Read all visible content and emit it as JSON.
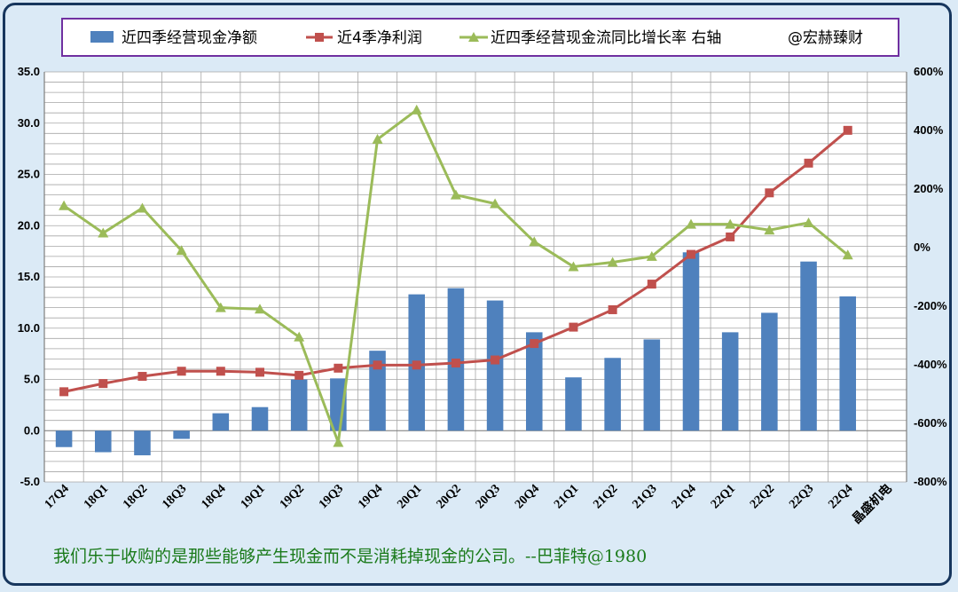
{
  "colors": {
    "bar": "#4f81bd",
    "profit_line": "#c0504d",
    "growth_line": "#9bbb59",
    "plot_bg": "#ffffff",
    "grid": "#a6a6a6",
    "legend_border": "#7030a0",
    "quote": "#1a7a1a"
  },
  "legend": {
    "bar_label": "近四季经营现金净额",
    "profit_label": "近4季净利润",
    "growth_label": "近四季经营现金流同比增长率 右轴",
    "credit": "@宏赫臻财"
  },
  "quote": "我们乐于收购的是那些能够产生现金而不是消耗掉现金的公司。--巴菲特@1980",
  "company_label": "晶盛机电",
  "chart_data": {
    "type": "bar",
    "categories": [
      "17Q4",
      "18Q1",
      "18Q2",
      "18Q3",
      "18Q4",
      "19Q1",
      "19Q2",
      "19Q3",
      "19Q4",
      "20Q1",
      "20Q2",
      "20Q3",
      "20Q4",
      "21Q1",
      "21Q2",
      "21Q3",
      "21Q4",
      "22Q1",
      "22Q2",
      "22Q3",
      "22Q4"
    ],
    "series": [
      {
        "name": "近四季经营现金净额",
        "type": "bar",
        "axis": "left",
        "values": [
          -1.6,
          -2.1,
          -2.4,
          -0.8,
          1.7,
          2.3,
          5.0,
          5.1,
          7.8,
          13.3,
          13.9,
          12.7,
          9.6,
          5.2,
          7.1,
          8.9,
          17.4,
          9.6,
          11.5,
          16.5,
          13.1
        ]
      },
      {
        "name": "近4季净利润",
        "type": "line",
        "axis": "left",
        "values": [
          3.8,
          4.6,
          5.3,
          5.8,
          5.8,
          5.7,
          5.4,
          6.1,
          6.4,
          6.4,
          6.6,
          6.9,
          8.5,
          10.1,
          11.8,
          14.3,
          17.2,
          18.9,
          23.2,
          26.1,
          29.3
        ]
      },
      {
        "name": "近四季经营现金流同比增长率 右轴",
        "type": "line",
        "axis": "right",
        "unit": "%",
        "values": [
          143,
          50,
          135,
          -10,
          -205,
          -210,
          -305,
          -665,
          370,
          470,
          180,
          150,
          20,
          -65,
          -50,
          -30,
          80,
          80,
          60,
          85,
          -25
        ]
      }
    ],
    "left_axis": {
      "min": -5,
      "max": 35,
      "ticks": [
        "-5.0",
        "0.0",
        "5.0",
        "10.0",
        "15.0",
        "20.0",
        "25.0",
        "30.0",
        "35.0"
      ]
    },
    "right_axis": {
      "min": -800,
      "max": 600,
      "ticks": [
        "-800%",
        "-600%",
        "-400%",
        "-200%",
        "0%",
        "200%",
        "400%",
        "600%"
      ]
    },
    "grid": true,
    "legend_position": "top"
  }
}
